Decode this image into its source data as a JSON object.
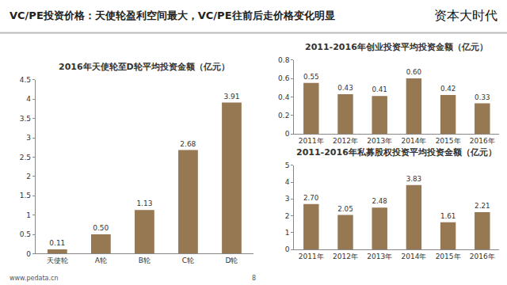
{
  "header": {
    "title": "VC/PE投资价格：天使轮盈利空间最大，VC/PE往前后走价格变化明显",
    "logo": "资本大时代"
  },
  "footer": {
    "source": "www.pedata.cn",
    "page": 8
  },
  "chart_data": [
    {
      "type": "bar",
      "title": "2016年天使轮至D轮平均投资金额（亿元）",
      "categories": [
        "天使轮",
        "A轮",
        "B轮",
        "C轮",
        "D轮"
      ],
      "values": [
        0.11,
        0.5,
        1.13,
        2.68,
        3.91
      ],
      "value_labels": [
        "0.11",
        "0.50",
        "1.13",
        "2.68",
        "3.91"
      ],
      "color": "#967852",
      "data_labels": true,
      "grid": false,
      "ylim": [
        0,
        4.5
      ],
      "yticks": [
        0,
        0.5,
        1,
        1.5,
        2,
        2.5,
        3,
        3.5,
        4,
        4.5
      ]
    },
    {
      "type": "bar",
      "title": "2011-2016年创业投资平均投资金额（亿元）",
      "categories": [
        "2011年",
        "2012年",
        "2013年",
        "2014年",
        "2015年",
        "2016年"
      ],
      "values": [
        0.55,
        0.43,
        0.41,
        0.6,
        0.42,
        0.33
      ],
      "value_labels": [
        "0.55",
        "0.43",
        "0.41",
        "0.60",
        "0.42",
        "0.33"
      ],
      "color": "#967852",
      "data_labels": true,
      "grid": false,
      "ylim": [
        0,
        0.8
      ],
      "yticks": [
        0,
        0.2,
        0.4,
        0.6,
        0.8
      ]
    },
    {
      "type": "bar",
      "title": "2011-2016年私募股权投资平均投资金额（亿元）",
      "categories": [
        "2011年",
        "2012年",
        "2013年",
        "2014年",
        "2015年",
        "2016年"
      ],
      "values": [
        2.7,
        2.05,
        2.48,
        3.83,
        1.61,
        2.21
      ],
      "value_labels": [
        "2.70",
        "2.05",
        "2.48",
        "3.83",
        "1.61",
        "2.21"
      ],
      "color": "#967852",
      "data_labels": true,
      "grid": false,
      "ylim": [
        0,
        5
      ],
      "yticks": [
        0,
        1,
        2,
        3,
        4,
        5
      ]
    }
  ]
}
